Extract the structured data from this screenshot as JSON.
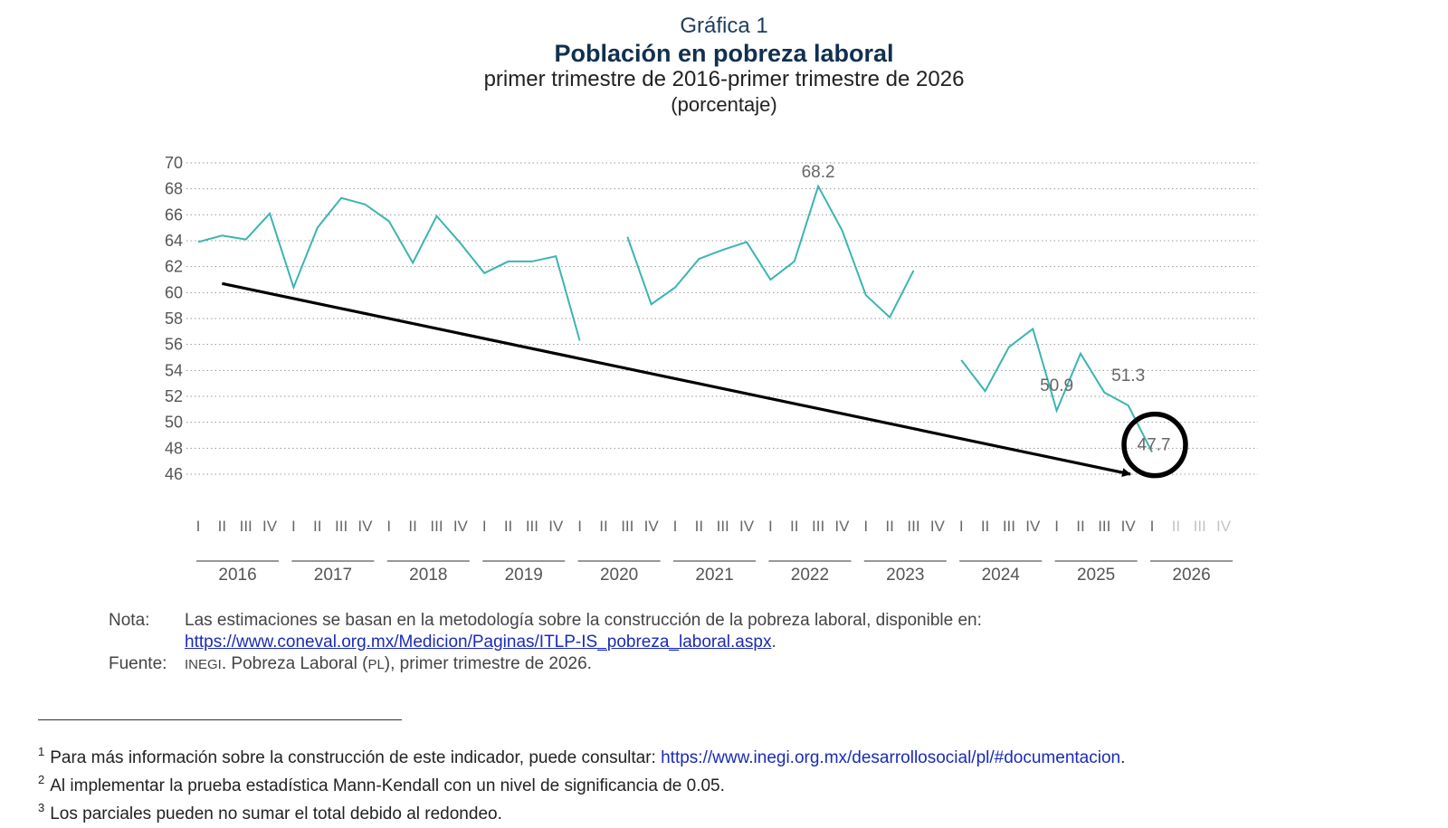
{
  "header": {
    "graph_number": "Gráfica 1",
    "title": "Población en pobreza laboral",
    "subtitle": "primer trimestre de 2016-primer trimestre de 2026",
    "unit": "(porcentaje)"
  },
  "chart_data": {
    "type": "line",
    "ylim": [
      46,
      70
    ],
    "yticks": [
      70,
      68,
      66,
      64,
      62,
      60,
      58,
      56,
      54,
      52,
      50,
      48,
      46
    ],
    "grid": "horizontal dotted",
    "years": [
      "2016",
      "2017",
      "2018",
      "2019",
      "2020",
      "2021",
      "2022",
      "2023",
      "2024",
      "2025",
      "2026"
    ],
    "quarters": [
      "I",
      "II",
      "III",
      "IV"
    ],
    "series": [
      {
        "color": "#3bb5b0",
        "values": [
          63.9,
          64.4,
          64.1,
          66.1,
          60.4,
          65.0,
          67.3,
          66.8,
          65.5,
          62.3,
          65.9,
          63.8,
          61.5,
          62.4,
          62.4,
          62.8,
          56.3,
          null,
          64.3,
          59.1,
          60.4,
          62.6,
          63.3,
          63.9,
          61.0,
          62.4,
          68.2,
          64.8,
          59.8,
          58.1,
          61.7,
          null,
          54.8,
          52.4,
          55.8,
          57.2,
          50.9,
          55.3,
          52.3,
          51.3,
          47.7,
          null,
          null,
          null
        ]
      }
    ],
    "annotations": [
      {
        "label": "68.2",
        "year": "2022",
        "quarter": "III"
      },
      {
        "label": "50.9",
        "year": "2025",
        "quarter": "I"
      },
      {
        "label": "51.3",
        "year": "2025",
        "quarter": "IV"
      },
      {
        "label": "47.7",
        "year": "2026",
        "quarter": "I"
      }
    ],
    "trend_arrow": {
      "from": {
        "year": "2016",
        "quarter": "II",
        "value": 60.7
      },
      "to": {
        "year": "2026",
        "quarter": "I",
        "value": 46.0
      }
    },
    "circle_highlight": {
      "year": "2026",
      "quarter": "I",
      "value": 47.7
    },
    "line_color": "#3bb5b0",
    "arrow_color": "#000000",
    "faded_label_color": "#c4c4c4"
  },
  "notes": {
    "nota_label": "Nota:",
    "nota_text": "Las estimaciones se basan en la metodología sobre la construcción de la pobreza laboral, disponible en:",
    "nota_url": "https://www.coneval.org.mx/Medicion/Paginas/ITLP-IS_pobreza_laboral.aspx",
    "nota_end": ".",
    "fuente_label": "Fuente:",
    "fuente_org": "INEGI",
    "fuente_text": ". Pobreza Laboral (",
    "fuente_abbr": "PL",
    "fuente_end": "), primer trimestre de 2026."
  },
  "footnotes": [
    {
      "n": "1",
      "text": "Para más información sobre la construcción de este indicador, puede consultar: ",
      "link": "https://www.inegi.org.mx/desarrollosocial/pl/#documentacion",
      "end": "."
    },
    {
      "n": "2",
      "text": "Al implementar la prueba estadística Mann-Kendall con un nivel de significancia de 0.05.",
      "link": "",
      "end": ""
    },
    {
      "n": "3",
      "text": "Los parciales pueden no sumar el total debido al redondeo.",
      "link": "",
      "end": ""
    }
  ]
}
